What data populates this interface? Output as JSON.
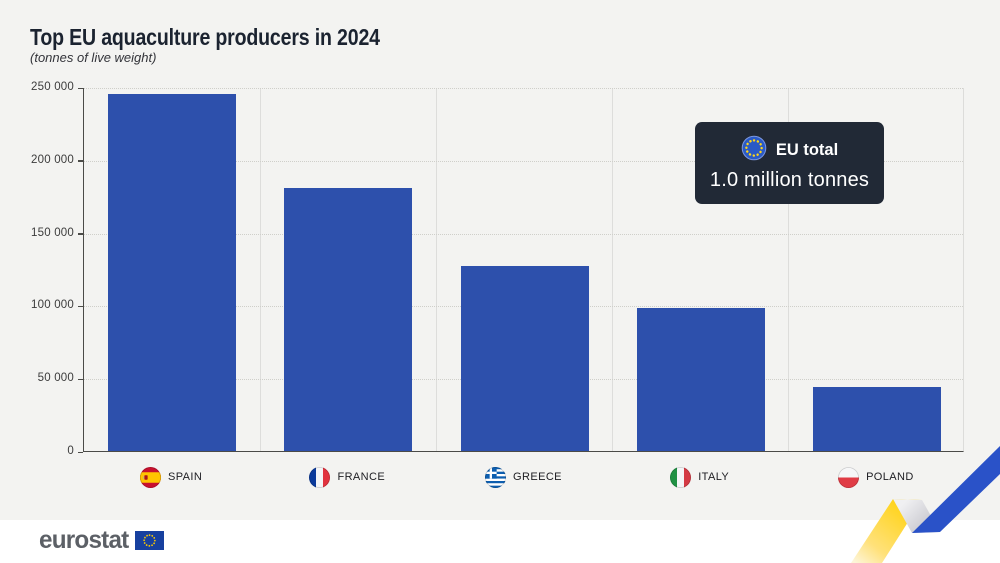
{
  "header": {
    "title": "Top EU aquaculture producers in 2024",
    "subtitle": "(tonnes of live weight)"
  },
  "eu_total_badge": {
    "label": "EU total",
    "value": "1.0 million tonnes"
  },
  "chart_data": {
    "type": "bar",
    "title": "Top EU aquaculture producers in 2024",
    "unit_note": "(tonnes of live weight)",
    "categories": [
      "SPAIN",
      "FRANCE",
      "GREECE",
      "ITALY",
      "POLAND"
    ],
    "flags": [
      "es",
      "fr",
      "gr",
      "it",
      "pl"
    ],
    "values": [
      245000,
      181000,
      127000,
      98000,
      44000
    ],
    "ylim": [
      0,
      250000
    ],
    "ytick_step": 50000,
    "ytick_labels": [
      "0",
      "50 000",
      "100 000",
      "150 000",
      "200 000",
      "250 000"
    ],
    "grid": "dotted-horizontal",
    "legend": "none",
    "eu_total": "1.0 million tonnes"
  },
  "footer": {
    "logo_text": "eurostat"
  },
  "colors": {
    "background": "#f3f3f1",
    "footer_background": "#ffffff",
    "bar": "#2d50ac",
    "badge_background": "#212936",
    "badge_text": "#ffffff",
    "axis": "#4b4b48",
    "gridline": "#cfcfca",
    "ribbon_blue": "#2a52c8",
    "ribbon_yellow": "#ffd10a",
    "ribbon_gray": "#c1c1c8",
    "eu_flag_blue": "#2a5ac6",
    "eu_star_yellow": "#ffd617"
  }
}
